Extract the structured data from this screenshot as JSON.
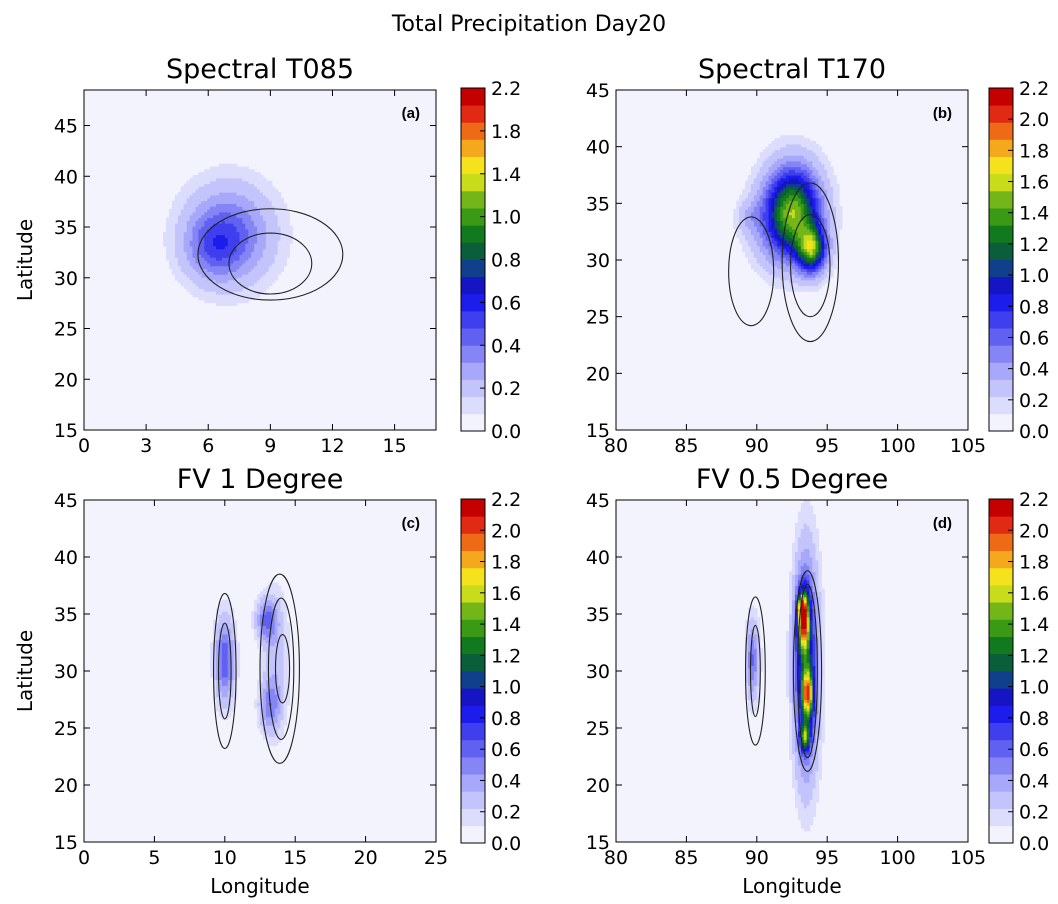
{
  "suptitle": "Total Precipitation Day20",
  "colors": {
    "levels": [
      "#f3f3fe",
      "#dcdcfd",
      "#c4c4fc",
      "#a8a8fa",
      "#8585f6",
      "#6161f1",
      "#3f3fee",
      "#1c1cec",
      "#1515c4",
      "#103f8c",
      "#0a5f3a",
      "#127a1e",
      "#3a9a16",
      "#74b61a",
      "#c8dc1c",
      "#f3e21c",
      "#f3a91b",
      "#ee6a17",
      "#e02a14",
      "#c40000"
    ],
    "background": "#f3f3fe",
    "contour": "#222222"
  },
  "chart_data": [
    {
      "type": "heatmap",
      "panel": "a",
      "title": "Spectral T085",
      "tag": "(a)",
      "xlabel": "",
      "ylabel": "Latitude",
      "xlim": [
        0,
        17
      ],
      "ylim": [
        15,
        48.5
      ],
      "xticks": [
        "0",
        "3",
        "6",
        "9",
        "12",
        "15"
      ],
      "xtick_values": [
        0,
        3,
        6,
        9,
        12,
        15
      ],
      "yticks": [
        "15",
        "20",
        "25",
        "30",
        "35",
        "40",
        "45"
      ],
      "ytick_values": [
        15,
        20,
        25,
        30,
        35,
        40,
        45
      ],
      "colorbar_ticks": [
        "0.0",
        "0.2",
        "0.4",
        "0.6",
        "0.8",
        "1.0",
        "1.4",
        "1.8",
        "2.2"
      ],
      "colorbar_range": [
        0,
        2.2
      ],
      "precip_blobs": [
        {
          "x": 7.0,
          "y": 34.3,
          "sx": 1.4,
          "sy": 3.2,
          "peak": 0.5
        },
        {
          "x": 6.2,
          "y": 33.0,
          "sx": 0.9,
          "sy": 2.0,
          "peak": 0.25
        }
      ],
      "contours": [
        {
          "cx": 9.0,
          "cy": 32.3,
          "rx": 3.5,
          "ry": 4.5
        },
        {
          "cx": 9.0,
          "cy": 31.4,
          "rx": 2.0,
          "ry": 3.0
        }
      ]
    },
    {
      "type": "heatmap",
      "panel": "b",
      "title": "Spectral T170",
      "tag": "(b)",
      "xlabel": "",
      "ylabel": "",
      "xlim": [
        80,
        105
      ],
      "ylim": [
        15,
        45
      ],
      "xticks": [
        "80",
        "85",
        "90",
        "95",
        "100",
        "105"
      ],
      "xtick_values": [
        80,
        85,
        90,
        95,
        100,
        105
      ],
      "yticks": [
        "15",
        "20",
        "25",
        "30",
        "35",
        "40",
        "45"
      ],
      "ytick_values": [
        15,
        20,
        25,
        30,
        35,
        40,
        45
      ],
      "colorbar_ticks": [
        "0.0",
        "0.2",
        "0.4",
        "0.6",
        "0.8",
        "1.0",
        "1.2",
        "1.4",
        "1.6",
        "1.8",
        "2.0",
        "2.2"
      ],
      "colorbar_range": [
        0,
        2.2
      ],
      "precip_blobs": [
        {
          "x": 92.6,
          "y": 34.5,
          "sx": 1.3,
          "sy": 2.6,
          "peak": 1.2
        },
        {
          "x": 93.9,
          "y": 31.0,
          "sx": 0.7,
          "sy": 1.4,
          "peak": 1.15
        },
        {
          "x": 91.8,
          "y": 33.0,
          "sx": 1.5,
          "sy": 2.5,
          "peak": 0.3
        },
        {
          "x": 89.5,
          "y": 33.8,
          "sx": 0.6,
          "sy": 1.0,
          "peak": 0.15
        }
      ],
      "contours": [
        {
          "cx": 93.8,
          "cy": 29.8,
          "rx": 2.0,
          "ry": 7.0
        },
        {
          "cx": 93.8,
          "cy": 29.5,
          "rx": 1.4,
          "ry": 4.5
        },
        {
          "cx": 89.6,
          "cy": 29.0,
          "rx": 1.6,
          "ry": 4.8
        }
      ]
    },
    {
      "type": "heatmap",
      "panel": "c",
      "title": "FV 1 Degree",
      "tag": "(c)",
      "xlabel": "Longitude",
      "ylabel": "Latitude",
      "xlim": [
        0,
        25
      ],
      "ylim": [
        15,
        45
      ],
      "xticks": [
        "0",
        "5",
        "10",
        "15",
        "20",
        "25"
      ],
      "xtick_values": [
        0,
        5,
        10,
        15,
        20,
        25
      ],
      "yticks": [
        "15",
        "20",
        "25",
        "30",
        "35",
        "40",
        "45"
      ],
      "ytick_values": [
        15,
        20,
        25,
        30,
        35,
        40,
        45
      ],
      "colorbar_ticks": [
        "0.0",
        "0.2",
        "0.4",
        "0.6",
        "0.8",
        "1.0",
        "1.2",
        "1.4",
        "1.6",
        "1.8",
        "2.0",
        "2.2"
      ],
      "colorbar_range": [
        0,
        2.2
      ],
      "precip_blobs": [
        {
          "x": 10.0,
          "y": 31.0,
          "sx": 0.45,
          "sy": 2.4,
          "peak": 0.55
        },
        {
          "x": 13.0,
          "y": 34.5,
          "sx": 0.5,
          "sy": 1.2,
          "peak": 0.45
        },
        {
          "x": 13.2,
          "y": 27.0,
          "sx": 0.5,
          "sy": 1.5,
          "peak": 0.35
        },
        {
          "x": 13.6,
          "y": 31.0,
          "sx": 0.6,
          "sy": 4.0,
          "peak": 0.18
        }
      ],
      "contours": [
        {
          "cx": 10.0,
          "cy": 30.0,
          "rx": 0.8,
          "ry": 6.8
        },
        {
          "cx": 10.0,
          "cy": 30.0,
          "rx": 0.45,
          "ry": 4.2
        },
        {
          "cx": 13.9,
          "cy": 30.2,
          "rx": 1.4,
          "ry": 8.3
        },
        {
          "cx": 14.0,
          "cy": 30.2,
          "rx": 0.9,
          "ry": 6.2
        },
        {
          "cx": 14.1,
          "cy": 30.2,
          "rx": 0.5,
          "ry": 3.0
        }
      ]
    },
    {
      "type": "heatmap",
      "panel": "d",
      "title": "FV 0.5 Degree",
      "tag": "(d)",
      "xlabel": "Longitude",
      "ylabel": "",
      "xlim": [
        80,
        105
      ],
      "ylim": [
        15,
        45
      ],
      "xticks": [
        "80",
        "85",
        "90",
        "95",
        "100",
        "105"
      ],
      "xtick_values": [
        80,
        85,
        90,
        95,
        100,
        105
      ],
      "yticks": [
        "15",
        "20",
        "25",
        "30",
        "35",
        "40",
        "45"
      ],
      "ytick_values": [
        15,
        20,
        25,
        30,
        35,
        40,
        45
      ],
      "colorbar_ticks": [
        "0.0",
        "0.2",
        "0.4",
        "0.6",
        "0.8",
        "1.0",
        "1.2",
        "1.4",
        "1.6",
        "1.8",
        "2.0",
        "2.2"
      ],
      "colorbar_range": [
        0,
        2.2
      ],
      "precip_blobs": [
        {
          "x": 89.7,
          "y": 31.0,
          "sx": 0.3,
          "sy": 2.3,
          "peak": 0.45
        },
        {
          "x": 93.5,
          "y": 30.5,
          "sx": 0.55,
          "sy": 6.0,
          "peak": 0.95
        },
        {
          "x": 93.3,
          "y": 34.5,
          "sx": 0.3,
          "sy": 1.8,
          "peak": 1.4
        },
        {
          "x": 93.2,
          "y": 35.7,
          "sx": 0.15,
          "sy": 0.6,
          "peak": 0.9
        },
        {
          "x": 93.6,
          "y": 28.0,
          "sx": 0.3,
          "sy": 1.5,
          "peak": 1.1
        },
        {
          "x": 93.4,
          "y": 24.2,
          "sx": 0.25,
          "sy": 0.8,
          "peak": 0.9
        }
      ],
      "contours": [
        {
          "cx": 89.9,
          "cy": 30.0,
          "rx": 0.7,
          "ry": 6.5
        },
        {
          "cx": 89.9,
          "cy": 30.0,
          "rx": 0.35,
          "ry": 4.0
        },
        {
          "cx": 93.6,
          "cy": 30.0,
          "rx": 1.0,
          "ry": 8.8
        },
        {
          "cx": 93.6,
          "cy": 30.0,
          "rx": 0.7,
          "ry": 7.6
        }
      ]
    }
  ]
}
